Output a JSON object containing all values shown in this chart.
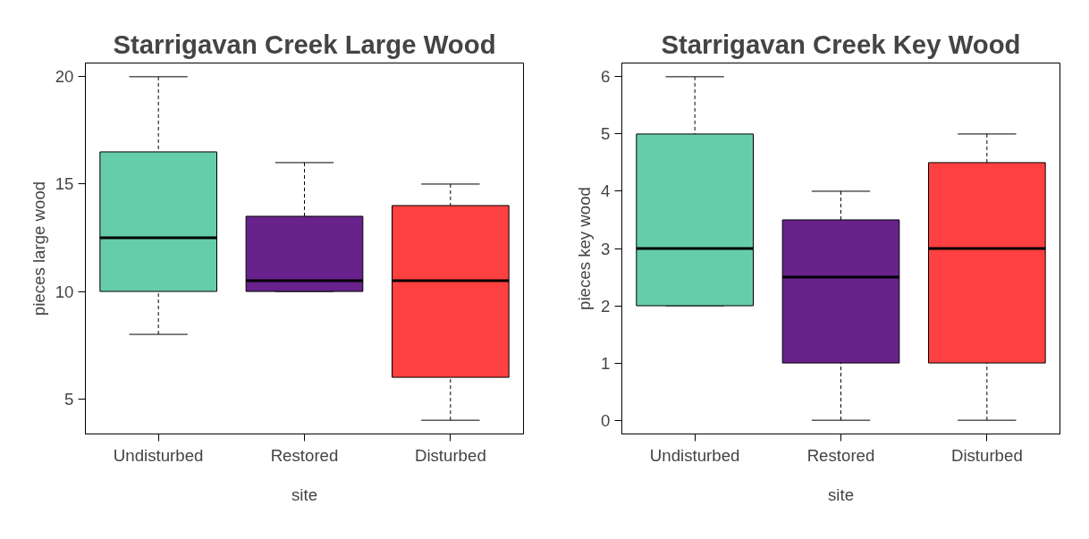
{
  "chart_data": [
    {
      "type": "box",
      "title": "Starrigavan Creek Large Wood",
      "xlabel": "site",
      "ylabel": "pieces large wood",
      "categories": [
        "Undisturbed",
        "Restored",
        "Disturbed"
      ],
      "colors": [
        "#66cdaa",
        "#68228b",
        "#ff4040"
      ],
      "boxes": [
        {
          "low": 8,
          "q1": 10,
          "median": 12.5,
          "q3": 16.5,
          "high": 20
        },
        {
          "low": 10,
          "q1": 10,
          "median": 10.5,
          "q3": 13.5,
          "high": 16
        },
        {
          "low": 4,
          "q1": 6,
          "median": 10.5,
          "q3": 14,
          "high": 15
        }
      ],
      "ylim": [
        3.36,
        20.64
      ],
      "yticks": [
        5,
        10,
        15,
        20
      ],
      "grid": false
    },
    {
      "type": "box",
      "title": "Starrigavan Creek Key Wood",
      "xlabel": "site",
      "ylabel": "pieces key wood",
      "categories": [
        "Undisturbed",
        "Restored",
        "Disturbed"
      ],
      "colors": [
        "#66cdaa",
        "#68228b",
        "#ff4040"
      ],
      "boxes": [
        {
          "low": 2,
          "q1": 2,
          "median": 3,
          "q3": 5,
          "high": 6
        },
        {
          "low": 0,
          "q1": 1,
          "median": 2.5,
          "q3": 3.5,
          "high": 4
        },
        {
          "low": 0,
          "q1": 1,
          "median": 3,
          "q3": 4.5,
          "high": 5
        }
      ],
      "ylim": [
        -0.24,
        6.24
      ],
      "yticks": [
        0,
        1,
        2,
        3,
        4,
        5,
        6
      ],
      "grid": false
    }
  ]
}
